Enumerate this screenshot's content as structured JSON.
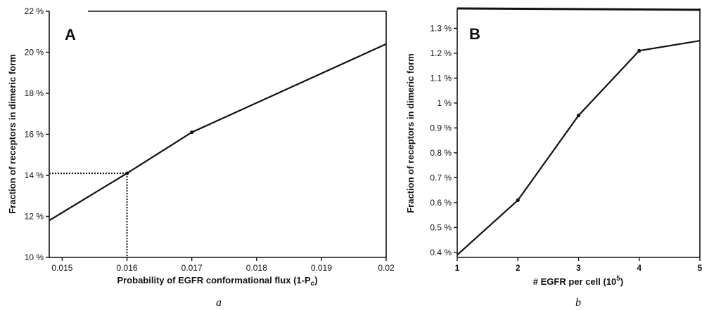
{
  "chart_data": [
    {
      "type": "line",
      "panel_label": "A",
      "caption": "a",
      "xlabel": "Probability of EGFR conformational flux (1-P",
      "xlabel_sub": "c",
      "xlabel_end": ")",
      "ylabel": "Fraction of receptors in dimeric form",
      "xlim": [
        0.0148,
        0.02
      ],
      "ylim": [
        10,
        22
      ],
      "x_ticks": [
        0.015,
        0.016,
        0.017,
        0.018,
        0.019,
        0.02
      ],
      "x_tick_labels": [
        "0.015",
        "0.016",
        "0.017",
        "0.018",
        "0.019",
        "0.02"
      ],
      "y_ticks": [
        10,
        12,
        14,
        16,
        18,
        20,
        22
      ],
      "y_tick_labels": [
        "10 %",
        "12 %",
        "14 %",
        "16 %",
        "18 %",
        "20 %",
        "22 %"
      ],
      "series": [
        {
          "x": [
            0.0148,
            0.016,
            0.017,
            0.02
          ],
          "y": [
            11.8,
            14.1,
            16.1,
            20.4
          ]
        }
      ],
      "reference_point": {
        "x": 0.016,
        "y": 14.1
      },
      "grid": false
    },
    {
      "type": "line",
      "panel_label": "B",
      "caption": "b",
      "xlabel": "# EGFR per cell (10",
      "xlabel_sup": "5",
      "xlabel_end": ")",
      "ylabel": "Fraction of receptors in dimeric form",
      "xlim": [
        1,
        5
      ],
      "ylim": [
        0.38,
        1.38
      ],
      "x_ticks": [
        1,
        2,
        3,
        4,
        5
      ],
      "x_tick_labels": [
        "1",
        "2",
        "3",
        "4",
        "5"
      ],
      "y_ticks": [
        0.4,
        0.5,
        0.6,
        0.7,
        0.8,
        0.9,
        1.0,
        1.1,
        1.2,
        1.3
      ],
      "y_tick_labels": [
        "0.4 %",
        "0.5 %",
        "0.6 %",
        "0.7 %",
        "0.8 %",
        "0.9 %",
        "1 %",
        "1.1 %",
        "1.2 %",
        "1.3 %"
      ],
      "series": [
        {
          "x": [
            1,
            2,
            3,
            4,
            5
          ],
          "y": [
            0.39,
            0.61,
            0.95,
            1.21,
            1.25
          ]
        }
      ],
      "grid": false
    }
  ]
}
